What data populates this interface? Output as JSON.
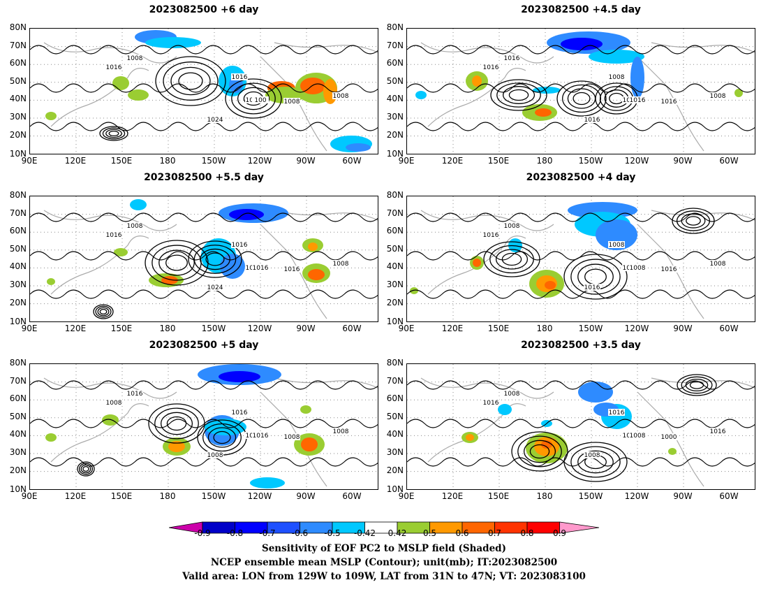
{
  "panels": [
    {
      "title": "2023082500  +6 day",
      "contour_labels": [
        "1016",
        "1008",
        "1016",
        "1024",
        "1008",
        "1008",
        "1008",
        "100"
      ]
    },
    {
      "title": "2023082500  +4.5 day",
      "contour_labels": [
        "1016",
        "1016",
        "1008",
        "1016",
        "1008",
        "1016",
        "1008",
        "1016"
      ]
    },
    {
      "title": "2023082500  +5.5 day",
      "contour_labels": [
        "1016",
        "1008",
        "1016",
        "1024",
        "1016",
        "1016",
        "1008",
        "1016"
      ]
    },
    {
      "title": "2023082500  +4 day",
      "contour_labels": [
        "1016",
        "1008",
        "1008",
        "1016",
        "1016",
        "1016",
        "1008",
        "1008"
      ]
    },
    {
      "title": "2023082500  +5 day",
      "contour_labels": [
        "1008",
        "1016",
        "1016",
        "1008",
        "1016",
        "1008",
        "1008",
        "1016"
      ]
    },
    {
      "title": "2023082500  +3.5 day",
      "contour_labels": [
        "1016",
        "1008",
        "1016",
        "1008",
        "1016",
        "1000",
        "1016",
        "1008"
      ]
    }
  ],
  "axes": {
    "lat_ticks": [
      "80N",
      "70N",
      "60N",
      "50N",
      "40N",
      "30N",
      "20N",
      "10N"
    ],
    "lon_ticks": [
      "90E",
      "120E",
      "150E",
      "180",
      "150W",
      "120W",
      "90W",
      "60W"
    ]
  },
  "colorbar": {
    "labels": [
      "-0.9",
      "-0.8",
      "-0.7",
      "-0.6",
      "-0.5",
      "-0.42",
      "0.42",
      "0.5",
      "0.6",
      "0.7",
      "0.8",
      "0.9"
    ],
    "colors": [
      "#0000c8",
      "#0000ff",
      "#1e50ff",
      "#2e8bff",
      "#00c8ff",
      "#ffffff",
      "#9acd32",
      "#ff9900",
      "#ff6600",
      "#ff3300",
      "#ff0000"
    ],
    "low_end_color": "#cc00aa",
    "high_end_color": "#ff99cc"
  },
  "caption": {
    "line1": "Sensitivity of EOF PC2 to MSLP field (Shaded)",
    "line2": "NCEP ensemble mean MSLP (Contour); unit(mb); IT:2023082500",
    "line3": "Valid area: LON from 129W to 109W, LAT from 31N to 47N; VT: 2023083100"
  },
  "colors": {
    "coast": "#aaaaaa",
    "contour": "#000000",
    "grid": "#888888"
  }
}
